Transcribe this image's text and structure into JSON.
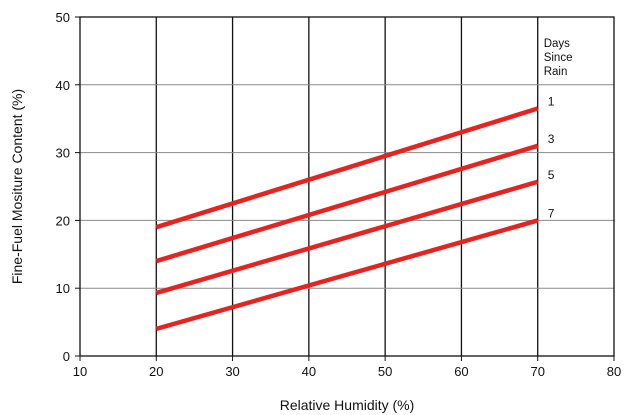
{
  "chart_data": {
    "type": "line",
    "xlabel": "Relative Humidity (%)",
    "ylabel": "Fine-Fuel Mositure Content (%)",
    "xlim": [
      10,
      80
    ],
    "ylim": [
      0,
      50
    ],
    "x_ticks": [
      10,
      20,
      30,
      40,
      50,
      60,
      70,
      80
    ],
    "y_ticks": [
      0,
      10,
      20,
      30,
      40,
      50
    ],
    "grid": true,
    "legend_title": [
      "Days",
      "Since",
      "Rain"
    ],
    "legend_placement": "top-right",
    "series": [
      {
        "name": "1",
        "color": "#e8231f",
        "points": [
          [
            20,
            19
          ],
          [
            70,
            36.5
          ]
        ]
      },
      {
        "name": "3",
        "color": "#e8231f",
        "points": [
          [
            20,
            14
          ],
          [
            70,
            31
          ]
        ]
      },
      {
        "name": "5",
        "color": "#e8231f",
        "points": [
          [
            20,
            9.3
          ],
          [
            70,
            25.7
          ]
        ]
      },
      {
        "name": "7",
        "color": "#e8231f",
        "points": [
          [
            20,
            4
          ],
          [
            70,
            20
          ]
        ]
      }
    ]
  }
}
